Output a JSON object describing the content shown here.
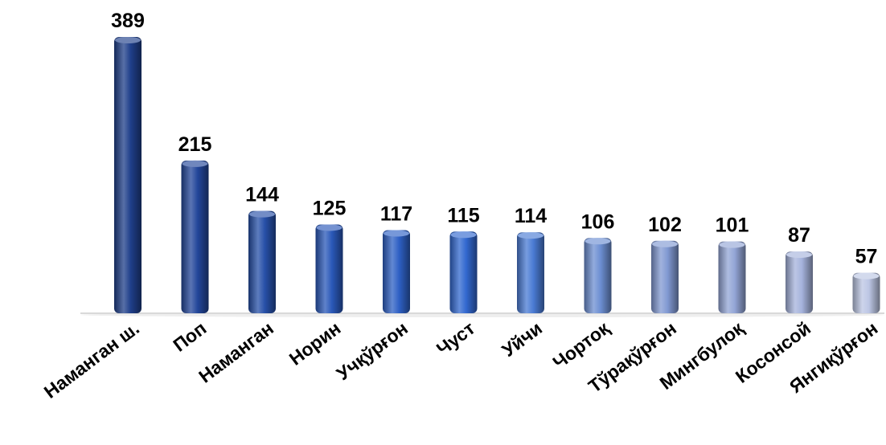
{
  "chart_data": {
    "type": "bar",
    "title": "",
    "xlabel": "",
    "ylabel": "",
    "ylim": [
      0,
      389
    ],
    "grid": false,
    "legend": "none",
    "categories": [
      "Наманган ш.",
      "Поп",
      "Наманган",
      "Норин",
      "Учқўрғон",
      "Чуст",
      "Уйчи",
      "Чортоқ",
      "Тўрақўрғон",
      "Мингбулоқ",
      "Косонсой",
      "Янгиқўрғон"
    ],
    "values": [
      389,
      215,
      144,
      125,
      117,
      115,
      114,
      106,
      102,
      101,
      87,
      57
    ],
    "colors": [
      "#1f3f8a",
      "#23469a",
      "#2750a8",
      "#2a58b8",
      "#2e60c4",
      "#3268cf",
      "#4a7bd4",
      "#6d8fd2",
      "#8199d2",
      "#93a5d6",
      "#a5b3dc",
      "#bcc6e4"
    ],
    "baseline_color": "#d9d9d9"
  }
}
